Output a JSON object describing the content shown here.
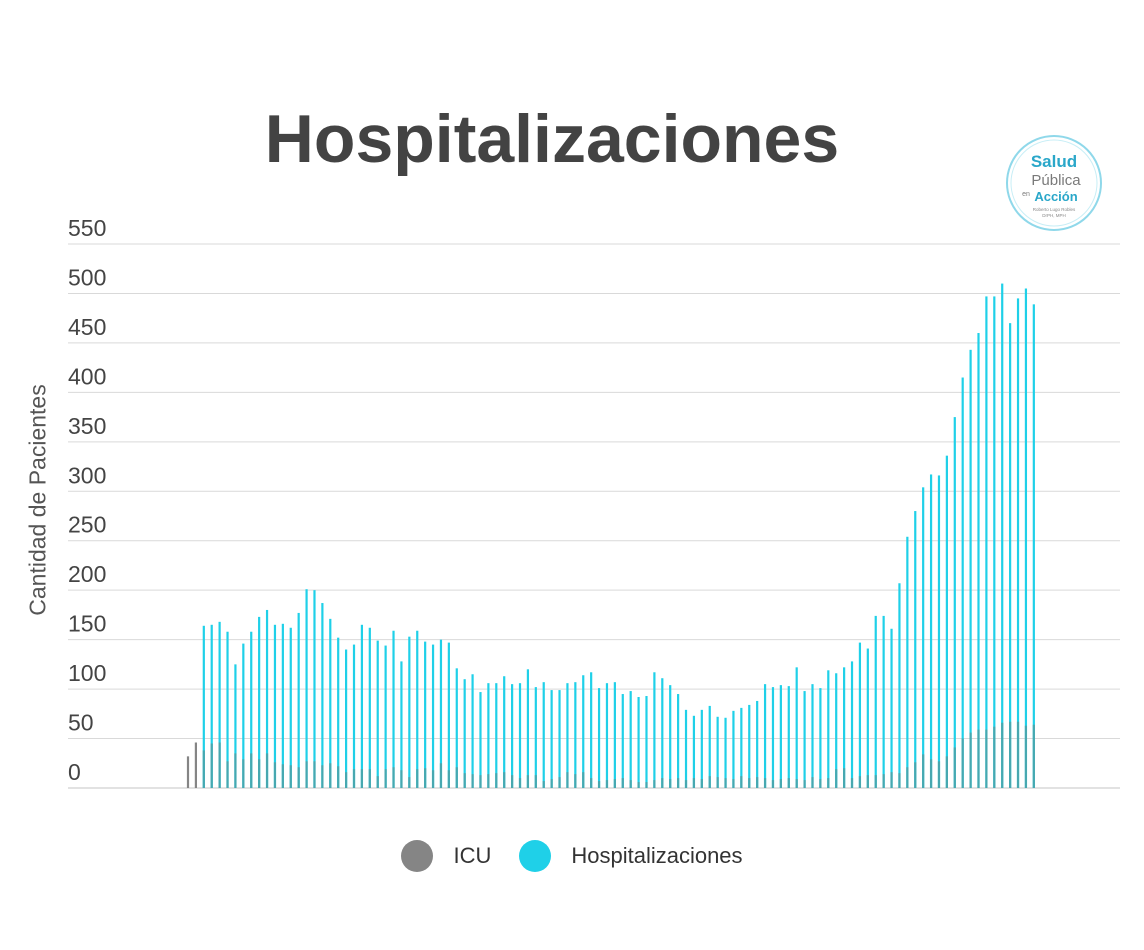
{
  "title": "Hospitalizaciones",
  "logo": {
    "line1": "Salud",
    "line2": "Pública",
    "line3_small": "en",
    "line3": "Acción",
    "line4": "Roberto Lugo Robles",
    "line5": "DrPH, MPH"
  },
  "colors": {
    "icu": "#858585",
    "hospitalizations": "#1fd0e8",
    "icu_overlay": "#47a8b0",
    "grid": "#d9d9d9",
    "text": "#444444"
  },
  "legend": [
    {
      "label": "ICU",
      "color": "#858585"
    },
    {
      "label": "Hospitalizaciones",
      "color": "#1fd0e8"
    }
  ],
  "chart_data": {
    "type": "bar",
    "title": "Hospitalizaciones",
    "ylabel": "Cantidad de Pacientes",
    "xlabel": "",
    "ylim": [
      0,
      550
    ],
    "yticks": [
      0,
      50,
      100,
      150,
      200,
      250,
      300,
      350,
      400,
      450,
      500,
      550
    ],
    "grid": true,
    "legend_position": "bottom",
    "series": [
      {
        "name": "Hospitalizaciones",
        "values": [
          null,
          null,
          164,
          165,
          168,
          158,
          125,
          146,
          158,
          173,
          180,
          165,
          166,
          162,
          177,
          201,
          200,
          187,
          171,
          152,
          140,
          145,
          165,
          162,
          149,
          144,
          159,
          128,
          153,
          159,
          148,
          145,
          150,
          147,
          121,
          110,
          115,
          97,
          106,
          106,
          113,
          105,
          106,
          120,
          102,
          107,
          99,
          99,
          106,
          107,
          114,
          117,
          101,
          106,
          107,
          95,
          98,
          92,
          93,
          117,
          111,
          104,
          95,
          79,
          73,
          79,
          83,
          72,
          71,
          78,
          81,
          84,
          88,
          105,
          102,
          104,
          103,
          122,
          98,
          105,
          101,
          119,
          116,
          122,
          128,
          147,
          141,
          174,
          174,
          161,
          207,
          254,
          280,
          304,
          317,
          316,
          336,
          375,
          415,
          443,
          460,
          497,
          497,
          510,
          470,
          495,
          505,
          489
        ]
      },
      {
        "name": "ICU",
        "values": [
          32,
          46,
          38,
          45,
          46,
          27,
          35,
          29,
          35,
          29,
          35,
          26,
          24,
          23,
          21,
          27,
          27,
          23,
          25,
          22,
          16,
          19,
          19,
          19,
          12,
          19,
          21,
          18,
          11,
          19,
          20,
          18,
          25,
          18,
          21,
          15,
          14,
          13,
          14,
          15,
          16,
          13,
          10,
          13,
          13,
          7,
          9,
          11,
          16,
          14,
          16,
          10,
          7,
          8,
          9,
          10,
          8,
          6,
          6,
          8,
          10,
          9,
          10,
          8,
          10,
          9,
          12,
          11,
          10,
          9,
          12,
          10,
          11,
          10,
          8,
          9,
          10,
          9,
          8,
          11,
          9,
          10,
          19,
          20,
          10,
          12,
          13,
          13,
          14,
          16,
          15,
          21,
          26,
          34,
          29,
          27,
          32,
          41,
          50,
          56,
          59,
          59,
          62,
          66,
          67,
          67,
          63,
          64
        ]
      }
    ]
  }
}
